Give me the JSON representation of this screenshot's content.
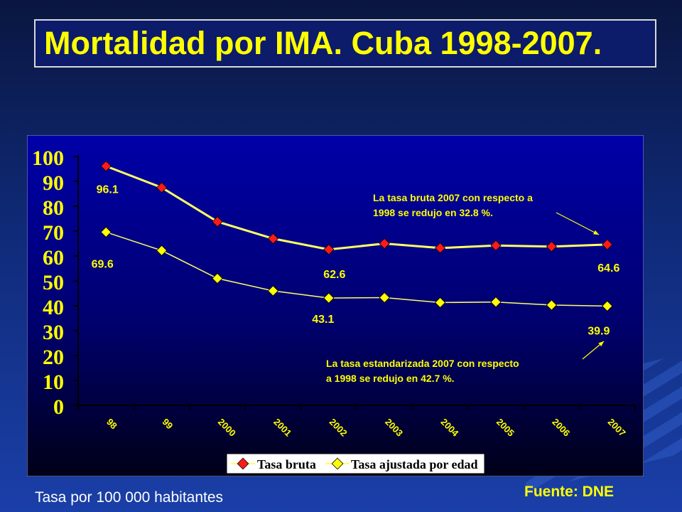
{
  "title": "Mortalidad por IMA. Cuba 1998-2007.",
  "footer_left": "Tasa por 100 000 habitantes",
  "footer_right": "Fuente: DNE",
  "colors": {
    "title_text": "#ffff00",
    "series_line": "#ffff66",
    "bruta_marker": "#ff1a1a",
    "ajustada_marker": "#ffff00",
    "label_text": "#ffff00"
  },
  "chart_data": {
    "type": "line",
    "categories": [
      "98",
      "99",
      "2000",
      "2001",
      "2002",
      "2003",
      "2004",
      "2005",
      "2006",
      "2007"
    ],
    "series": [
      {
        "name": "Tasa bruta",
        "values": [
          96.1,
          87.5,
          73.8,
          67.0,
          62.6,
          65.0,
          63.2,
          64.2,
          63.8,
          64.6
        ]
      },
      {
        "name": "Tasa ajustada por edad",
        "values": [
          69.6,
          62.2,
          51.0,
          46.0,
          43.1,
          43.3,
          41.3,
          41.5,
          40.3,
          39.9
        ]
      }
    ],
    "ylim": [
      0,
      100
    ],
    "yticks": [
      "0",
      "10",
      "20",
      "30",
      "40",
      "50",
      "60",
      "70",
      "80",
      "90",
      "100"
    ],
    "data_labels": [
      {
        "series": 0,
        "index": 0,
        "text": "96.1"
      },
      {
        "series": 1,
        "index": 0,
        "text": "69.6"
      },
      {
        "series": 0,
        "index": 4,
        "text": "62.6"
      },
      {
        "series": 1,
        "index": 4,
        "text": "43.1"
      },
      {
        "series": 0,
        "index": 9,
        "text": "64.6"
      },
      {
        "series": 1,
        "index": 9,
        "text": "39.9"
      }
    ],
    "annotations": [
      {
        "lines": [
          "La tasa bruta  2007 con respecto a",
          "1998 se redujo en 32.8 %."
        ],
        "series": 0,
        "index": 9
      },
      {
        "lines": [
          "La tasa estandarizada  2007 con respecto",
          "a 1998 se redujo en 42.7 %."
        ],
        "series": 1,
        "index": 9
      }
    ],
    "legend": {
      "position": "bottom"
    },
    "grid": false
  }
}
